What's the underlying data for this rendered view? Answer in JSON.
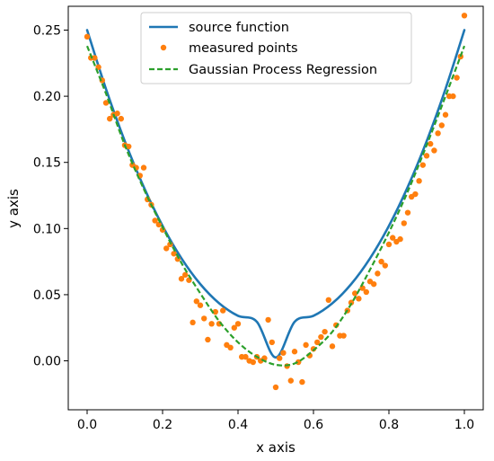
{
  "chart_data": {
    "type": "line",
    "xlabel": "x axis",
    "ylabel": "y axis",
    "xlim": [
      -0.05,
      1.05
    ],
    "ylim": [
      -0.037,
      0.268
    ],
    "xticks": [
      0.0,
      0.2,
      0.4,
      0.6,
      0.8,
      1.0
    ],
    "xtick_labels": [
      "0.0",
      "0.2",
      "0.4",
      "0.6",
      "0.8",
      "1.0"
    ],
    "yticks": [
      0.0,
      0.05,
      0.1,
      0.15,
      0.2,
      0.25
    ],
    "ytick_labels": [
      "0.00",
      "0.05",
      "0.10",
      "0.15",
      "0.20",
      "0.25"
    ],
    "grid": false,
    "legend_position": "top-center",
    "series": [
      {
        "name": "source function",
        "kind": "line",
        "style": "solid",
        "color": "#1f77b4",
        "x": [
          0.0,
          0.05,
          0.1,
          0.15,
          0.2,
          0.25,
          0.3,
          0.35,
          0.4,
          0.45,
          0.5,
          0.55,
          0.6,
          0.65,
          0.7,
          0.75,
          0.8,
          0.85,
          0.9,
          0.95,
          1.0
        ],
        "y": [
          0.25,
          0.2055,
          0.166,
          0.1315,
          0.102,
          0.0775,
          0.058,
          0.0435,
          0.034,
          0.0295,
          0.0025,
          0.0295,
          0.034,
          0.0435,
          0.058,
          0.0775,
          0.102,
          0.1315,
          0.166,
          0.2055,
          0.25
        ]
      },
      {
        "name": "measured points",
        "kind": "scatter",
        "color": "#ff7f0e",
        "x": [
          0.0,
          0.01,
          0.02,
          0.03,
          0.04,
          0.05,
          0.06,
          0.07,
          0.08,
          0.09,
          0.1,
          0.11,
          0.12,
          0.13,
          0.14,
          0.15,
          0.16,
          0.17,
          0.18,
          0.19,
          0.2,
          0.21,
          0.22,
          0.23,
          0.24,
          0.25,
          0.26,
          0.27,
          0.28,
          0.29,
          0.3,
          0.31,
          0.32,
          0.33,
          0.34,
          0.35,
          0.36,
          0.37,
          0.38,
          0.39,
          0.4,
          0.41,
          0.42,
          0.43,
          0.44,
          0.45,
          0.46,
          0.47,
          0.48,
          0.49,
          0.5,
          0.51,
          0.52,
          0.53,
          0.54,
          0.55,
          0.56,
          0.57,
          0.58,
          0.59,
          0.6,
          0.61,
          0.62,
          0.63,
          0.64,
          0.65,
          0.66,
          0.67,
          0.68,
          0.69,
          0.7,
          0.71,
          0.72,
          0.73,
          0.74,
          0.75,
          0.76,
          0.77,
          0.78,
          0.79,
          0.8,
          0.81,
          0.82,
          0.83,
          0.84,
          0.85,
          0.86,
          0.87,
          0.88,
          0.89,
          0.9,
          0.91,
          0.92,
          0.93,
          0.94,
          0.95,
          0.96,
          0.97,
          0.98,
          0.99,
          1.0
        ],
        "y": [
          0.245,
          0.229,
          0.229,
          0.222,
          0.212,
          0.195,
          0.183,
          0.186,
          0.187,
          0.183,
          0.163,
          0.162,
          0.148,
          0.146,
          0.14,
          0.146,
          0.122,
          0.118,
          0.106,
          0.103,
          0.099,
          0.085,
          0.088,
          0.081,
          0.077,
          0.062,
          0.065,
          0.061,
          0.029,
          0.045,
          0.042,
          0.032,
          0.016,
          0.028,
          0.037,
          0.028,
          0.038,
          0.012,
          0.01,
          0.025,
          0.028,
          0.003,
          0.003,
          0.0,
          -0.001,
          0.003,
          0.0,
          0.002,
          0.031,
          0.014,
          -0.02,
          0.002,
          0.006,
          -0.004,
          -0.015,
          0.007,
          -0.001,
          -0.016,
          0.012,
          0.004,
          0.009,
          0.014,
          0.018,
          0.022,
          0.046,
          0.011,
          0.027,
          0.019,
          0.019,
          0.038,
          0.044,
          0.051,
          0.047,
          0.055,
          0.052,
          0.06,
          0.058,
          0.066,
          0.075,
          0.072,
          0.088,
          0.093,
          0.09,
          0.092,
          0.104,
          0.112,
          0.124,
          0.126,
          0.136,
          0.148,
          0.155,
          0.164,
          0.159,
          0.172,
          0.178,
          0.186,
          0.2,
          0.2,
          0.214,
          0.23,
          0.261
        ]
      },
      {
        "name": "Gaussian Process Regression",
        "kind": "line",
        "style": "dashed",
        "color": "#2ca02c",
        "x": [
          0.0,
          0.05,
          0.1,
          0.15,
          0.2,
          0.25,
          0.3,
          0.35,
          0.4,
          0.45,
          0.5,
          0.55,
          0.6,
          0.65,
          0.7,
          0.75,
          0.8,
          0.85,
          0.9,
          0.95,
          1.0
        ],
        "y": [
          0.238,
          0.202,
          0.163,
          0.13,
          0.101,
          0.074,
          0.051,
          0.03,
          0.014,
          0.003,
          -0.003,
          -0.002,
          0.008,
          0.022,
          0.043,
          0.069,
          0.097,
          0.128,
          0.163,
          0.2,
          0.238
        ]
      }
    ]
  }
}
